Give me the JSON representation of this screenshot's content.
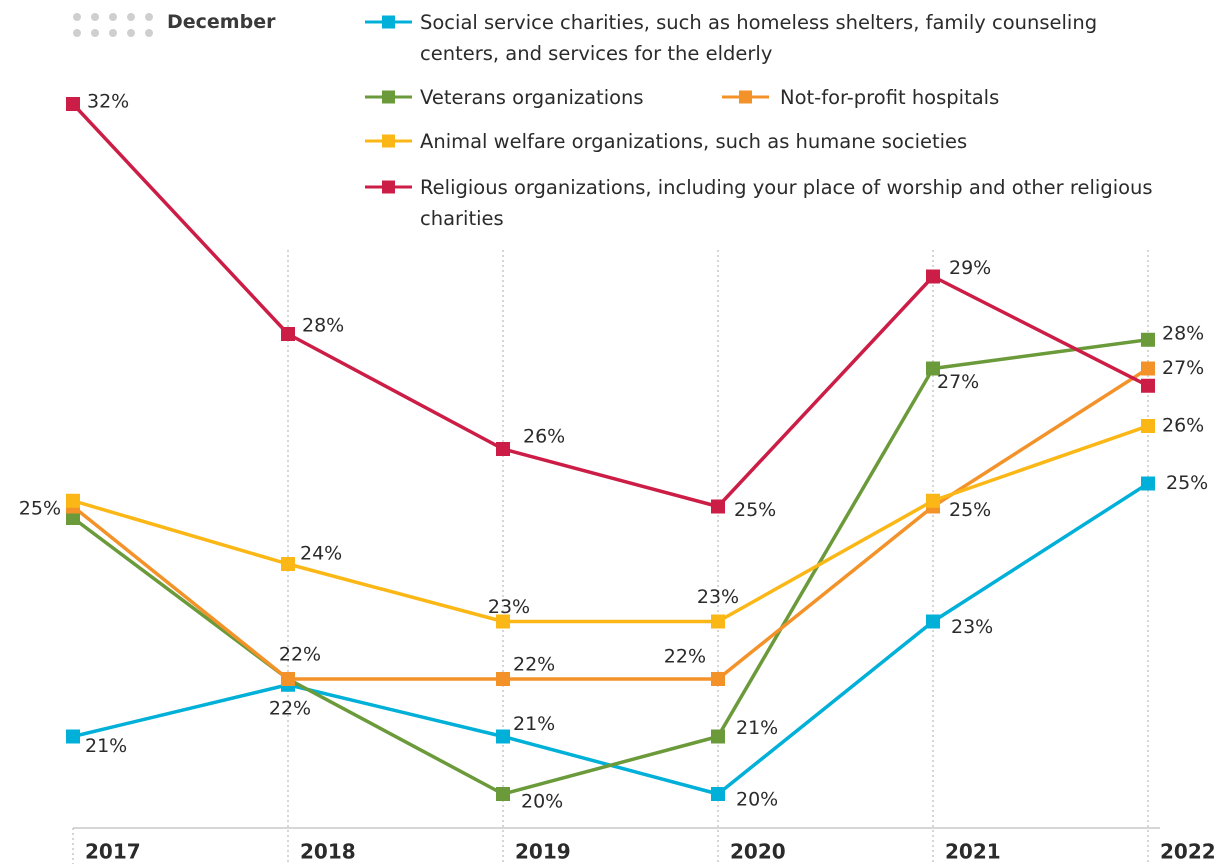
{
  "chart_data": {
    "type": "line",
    "period": "December",
    "categories": [
      "2017",
      "2018",
      "2019",
      "2020",
      "2021",
      "2022"
    ],
    "ylim": [
      19.4,
      32.6
    ],
    "series": [
      {
        "name": "Social service charities, such as homeless shelters, family counseling centers, and services for the elderly",
        "color": "#00b0d8",
        "values": [
          21,
          21.9,
          21,
          20,
          23,
          25.4
        ],
        "value_labels": [
          "21%",
          null,
          "21%",
          "20%",
          "23%",
          "25%"
        ]
      },
      {
        "name": "Veterans organizations",
        "color": "#6b9a3a",
        "values": [
          24.8,
          22,
          20,
          21,
          27.4,
          27.9
        ],
        "value_labels": [
          "25%",
          "22%",
          "20%",
          "21%",
          "27%",
          "28%"
        ]
      },
      {
        "name": "Not-for-profit hospitals",
        "color": "#f4922a",
        "values": [
          25,
          22,
          22,
          22,
          25,
          27.4
        ],
        "value_labels": [
          null,
          "22%",
          "22%",
          "22%",
          "25%",
          "27%"
        ]
      },
      {
        "name": "Animal welfare organizations, such as humane societies",
        "color": "#fbb716",
        "values": [
          25.1,
          24,
          23,
          23,
          25.1,
          26.4
        ],
        "value_labels": [
          null,
          "24%",
          "23%",
          "23%",
          null,
          "26%"
        ]
      },
      {
        "name": "Religious organizations, including your place of worship and other religious charities",
        "color": "#cc1d46",
        "values": [
          32,
          28,
          26,
          25,
          29,
          27.1
        ],
        "value_labels": [
          "32%",
          "28%",
          "26%",
          "25%",
          "29%",
          null
        ]
      }
    ]
  }
}
